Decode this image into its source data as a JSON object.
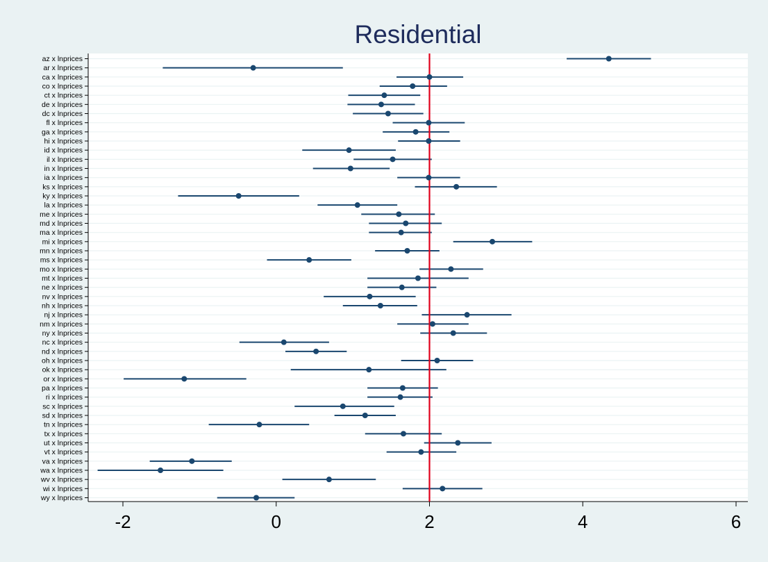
{
  "chart_data": {
    "type": "scatter",
    "subtype": "coefficient plot with confidence intervals",
    "title": "Residential",
    "xlabel": "",
    "ylabel": "",
    "xlim": [
      -2.5,
      6.2
    ],
    "xticks": [
      -2,
      0,
      2,
      4,
      6
    ],
    "xtick_labels": [
      "-2",
      "0",
      "2",
      "4",
      "6"
    ],
    "reference_line": {
      "x": 2,
      "color": "#e0001b"
    },
    "grid": "horizontal",
    "legend": "none",
    "colors": {
      "background": "#eaf2f3",
      "plot_area": "#ffffff",
      "series": "#1a476f",
      "grid": "#eaf2f3",
      "title": "#1e2c5c"
    },
    "categories": [
      "az x lnprices",
      "ar x lnprices",
      "ca x lnprices",
      "co x lnprices",
      "ct x lnprices",
      "de x lnprices",
      "dc x lnprices",
      "fl x lnprices",
      "ga x lnprices",
      "hi x lnprices",
      "id x lnprices",
      "il x lnprices",
      "in x lnprices",
      "ia x lnprices",
      "ks x lnprices",
      "ky x lnprices",
      "la x lnprices",
      "me x lnprices",
      "md x lnprices",
      "ma x lnprices",
      "mi x lnprices",
      "mn x lnprices",
      "ms x lnprices",
      "mo x lnprices",
      "mt x lnprices",
      "ne x lnprices",
      "nv x lnprices",
      "nh x lnprices",
      "nj x lnprices",
      "nm x lnprices",
      "ny x lnprices",
      "nc x lnprices",
      "nd x lnprices",
      "oh x lnprices",
      "ok x lnprices",
      "or x lnprices",
      "pa x lnprices",
      "ri x lnprices",
      "sc x lnprices",
      "sd x lnprices",
      "tn x lnprices",
      "tx x lnprices",
      "ut x lnprices",
      "vt x lnprices",
      "va x lnprices",
      "wa x lnprices",
      "wv x lnprices",
      "wi x lnprices",
      "wy x lnprices"
    ],
    "estimates": [
      4.34,
      -0.3,
      2.0,
      1.78,
      1.41,
      1.37,
      1.46,
      1.99,
      1.82,
      1.99,
      0.95,
      1.52,
      0.97,
      1.99,
      2.35,
      -0.49,
      1.06,
      1.6,
      1.69,
      1.63,
      2.82,
      1.71,
      0.43,
      2.28,
      1.85,
      1.64,
      1.22,
      1.36,
      2.49,
      2.04,
      2.31,
      0.1,
      0.52,
      2.1,
      1.21,
      -1.2,
      1.65,
      1.62,
      0.87,
      1.16,
      -0.22,
      1.66,
      2.37,
      1.89,
      -1.1,
      -1.51,
      0.69,
      2.17,
      -0.26
    ],
    "ci_low": [
      3.79,
      -1.48,
      1.57,
      1.35,
      0.94,
      0.93,
      1.0,
      1.52,
      1.39,
      1.59,
      0.34,
      1.01,
      0.48,
      1.58,
      1.81,
      -1.28,
      0.54,
      1.11,
      1.21,
      1.21,
      2.31,
      1.29,
      -0.12,
      1.87,
      1.19,
      1.19,
      0.62,
      0.87,
      1.9,
      1.58,
      1.88,
      -0.48,
      0.12,
      1.63,
      0.19,
      -1.99,
      1.19,
      1.19,
      0.24,
      0.76,
      -0.88,
      1.16,
      1.93,
      1.44,
      -1.65,
      -2.33,
      0.08,
      1.65,
      -0.77
    ],
    "ci_high": [
      4.89,
      0.87,
      2.44,
      2.23,
      1.88,
      1.81,
      1.92,
      2.46,
      2.26,
      2.4,
      1.56,
      2.03,
      1.48,
      2.4,
      2.88,
      0.3,
      1.58,
      2.07,
      2.16,
      2.03,
      3.34,
      2.13,
      0.98,
      2.7,
      2.51,
      2.09,
      1.82,
      1.84,
      3.07,
      2.51,
      2.75,
      0.69,
      0.92,
      2.57,
      2.22,
      -0.39,
      2.11,
      2.04,
      1.54,
      1.56,
      0.43,
      2.16,
      2.81,
      2.35,
      -0.58,
      -0.69,
      1.3,
      2.69,
      0.24
    ]
  }
}
